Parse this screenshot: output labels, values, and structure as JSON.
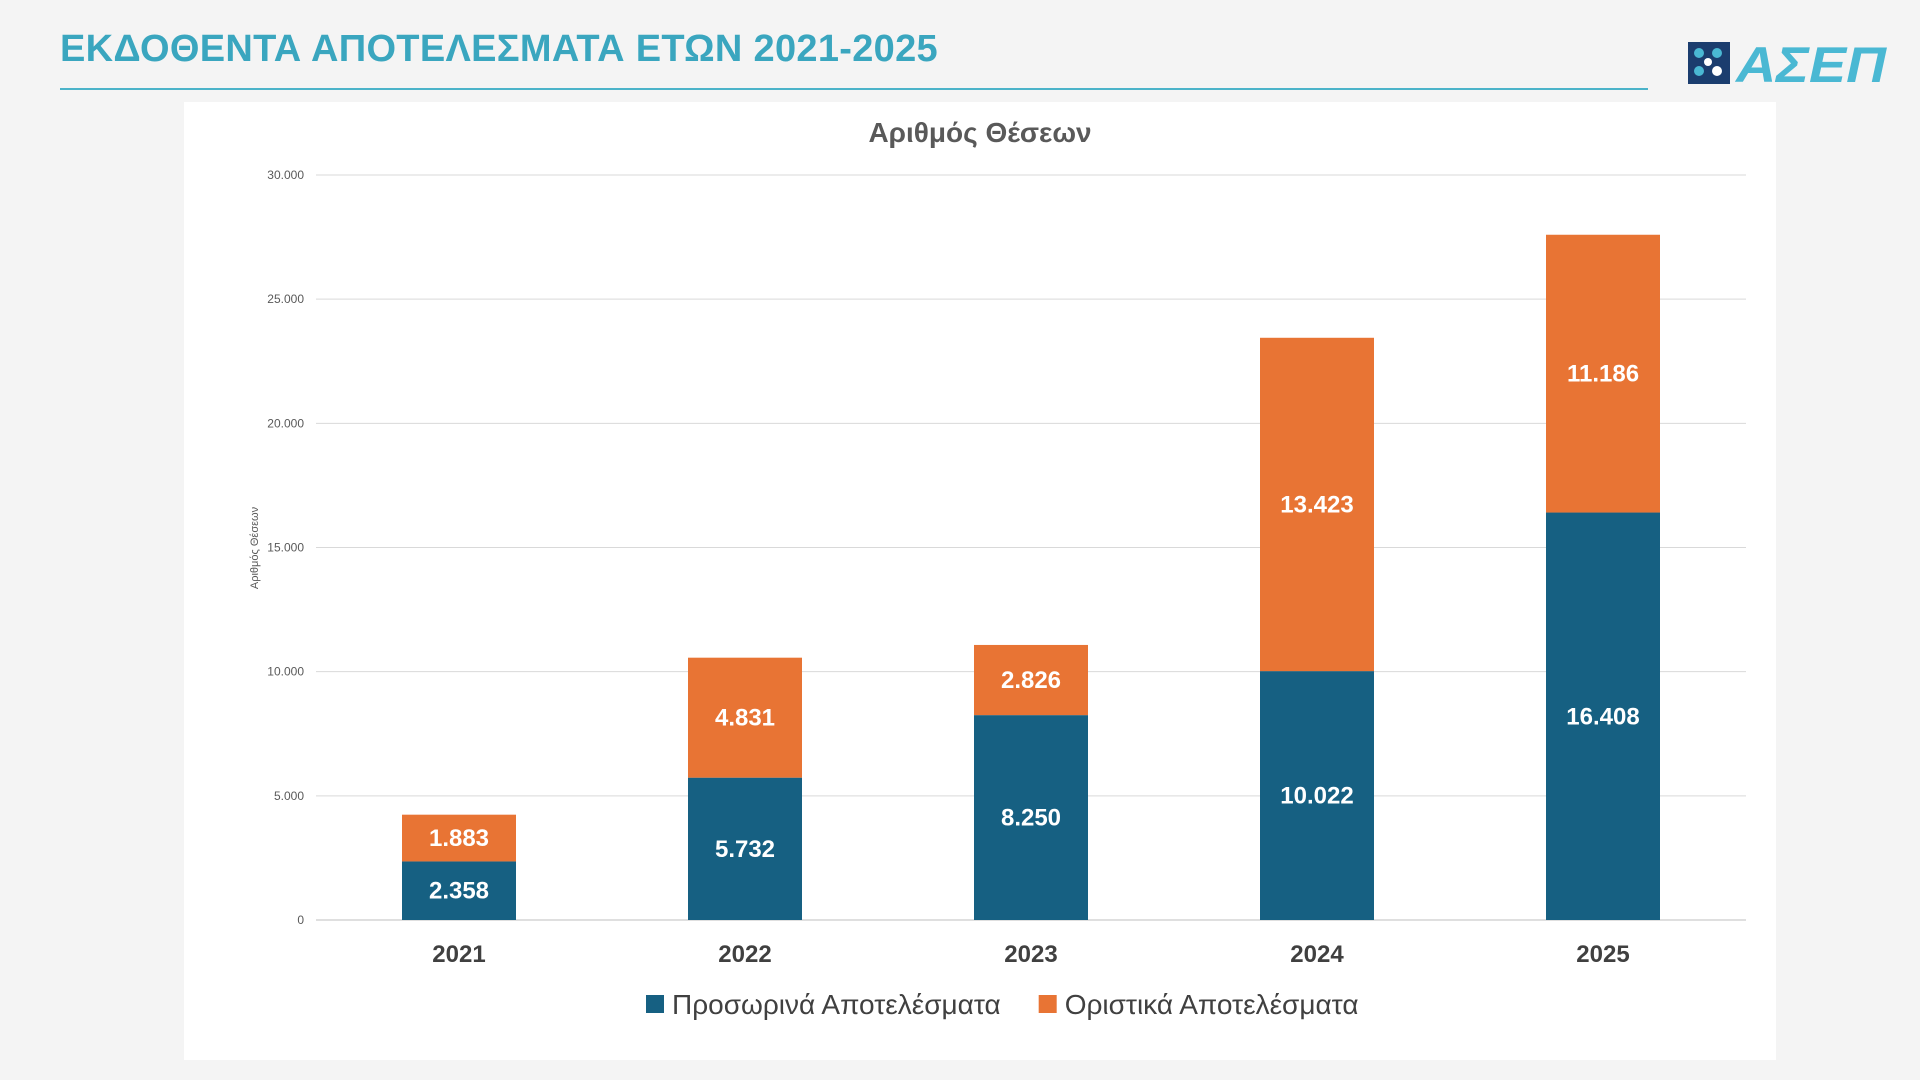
{
  "page": {
    "title": "ΕΚΔΟΘΕΝΤΑ ΑΠΟΤΕΛΕΣΜΑΤΑ ΕΤΩΝ 2021-2025",
    "logo_text": "ΑΣΕΠ"
  },
  "colors": {
    "title": "#3aa6bf",
    "provisional": "#166082",
    "final": "#e87434",
    "logo_dark": "#1b3d6e",
    "logo_light": "#4ab8d3"
  },
  "chart_data": {
    "type": "bar",
    "stacked": true,
    "title": "Αριθμός Θέσεων",
    "xlabel": "",
    "ylabel": "Αριθμός Θέσεων",
    "ylim": [
      0,
      30000
    ],
    "yticks": [
      0,
      5000,
      10000,
      15000,
      20000,
      25000,
      30000
    ],
    "ytick_labels": [
      "0",
      "5.000",
      "10.000",
      "15.000",
      "20.000",
      "25.000",
      "30.000"
    ],
    "grid": true,
    "legend_position": "bottom",
    "categories": [
      "2021",
      "2022",
      "2023",
      "2024",
      "2025"
    ],
    "series": [
      {
        "name": "Προσωρινά Αποτελέσματα",
        "color": "#166082",
        "values": [
          2358,
          5732,
          8250,
          10022,
          16408
        ],
        "labels": [
          "2.358",
          "5.732",
          "8.250",
          "10.022",
          "16.408"
        ]
      },
      {
        "name": "Οριστικά Αποτελέσματα",
        "color": "#e87434",
        "values": [
          1883,
          4831,
          2826,
          13423,
          11186
        ],
        "labels": [
          "1.883",
          "4.831",
          "2.826",
          "13.423",
          "11.186"
        ]
      }
    ]
  }
}
